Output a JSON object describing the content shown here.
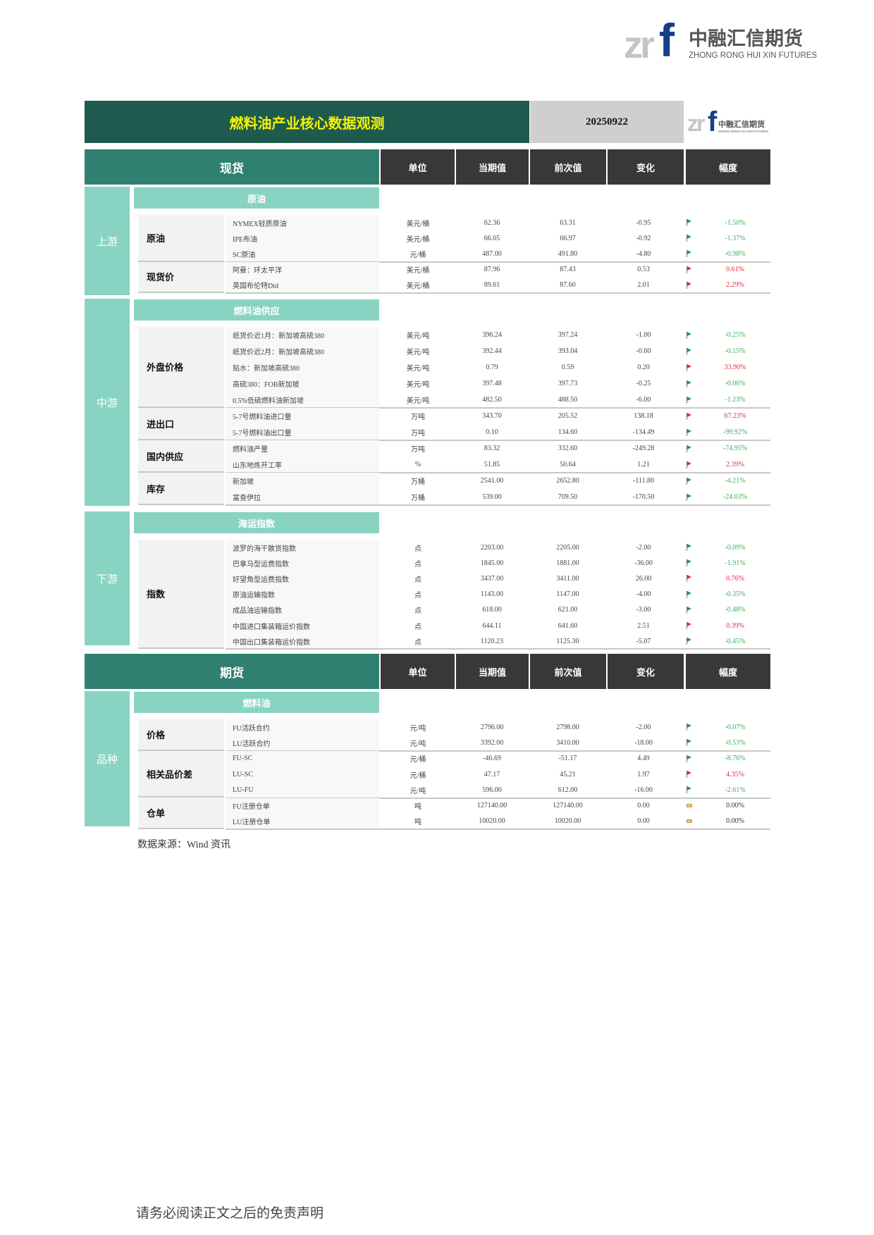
{
  "logo": {
    "brand_cn": "中融汇信期货",
    "brand_en": "ZHONG RONG HUI XIN FUTURES",
    "mark": "zrf"
  },
  "title": "燃料油产业核心数据观测",
  "date": "20250922",
  "columns": [
    "单位",
    "当期值",
    "前次值",
    "变化",
    "幅度"
  ],
  "colors": {
    "up": "#e0303c",
    "down": "#3cb050",
    "flag_up": "#e03030",
    "flag_down": "#2e8b6e",
    "header_dark": "#1f5a4e",
    "header_teal": "#2f8070",
    "section": "#89d3c3"
  },
  "spot": {
    "label": "现货",
    "blocks": [
      {
        "section": "上游",
        "sub": "原油",
        "groups": [
          {
            "label": "原油",
            "rows": [
              {
                "item": "NYMEX轻质原油",
                "unit": "美元/桶",
                "cur": "62.36",
                "prev": "63.31",
                "chg": "-0.95",
                "pct": "-1.50%",
                "dir": "down"
              },
              {
                "item": "IPE布油",
                "unit": "美元/桶",
                "cur": "66.05",
                "prev": "66.97",
                "chg": "-0.92",
                "pct": "-1.37%",
                "dir": "down"
              },
              {
                "item": "SC原油",
                "unit": "元/桶",
                "cur": "487.00",
                "prev": "491.80",
                "chg": "-4.80",
                "pct": "-0.98%",
                "dir": "down"
              }
            ]
          },
          {
            "label": "现货价",
            "rows": [
              {
                "item": "阿曼：环太平洋",
                "unit": "美元/桶",
                "cur": "87.96",
                "prev": "87.43",
                "chg": "0.53",
                "pct": "0.61%",
                "dir": "up"
              },
              {
                "item": "英国布伦特Dtd",
                "unit": "美元/桶",
                "cur": "89.61",
                "prev": "87.60",
                "chg": "2.01",
                "pct": "2.29%",
                "dir": "up"
              }
            ]
          }
        ]
      },
      {
        "section": "中游",
        "sub": "燃料油供应",
        "groups": [
          {
            "label": "外盘价格",
            "rows": [
              {
                "item": "纸货价近1月：新加坡高硫380",
                "unit": "美元/吨",
                "cur": "396.24",
                "prev": "397.24",
                "chg": "-1.00",
                "pct": "-0.25%",
                "dir": "down"
              },
              {
                "item": "纸货价近2月：新加坡高硫380",
                "unit": "美元/吨",
                "cur": "392.44",
                "prev": "393.04",
                "chg": "-0.60",
                "pct": "-0.15%",
                "dir": "down"
              },
              {
                "item": "贴水：新加坡高硫380",
                "unit": "美元/吨",
                "cur": "0.79",
                "prev": "0.59",
                "chg": "0.20",
                "pct": "33.90%",
                "dir": "up"
              },
              {
                "item": "高硫380：FOB新加坡",
                "unit": "美元/吨",
                "cur": "397.48",
                "prev": "397.73",
                "chg": "-0.25",
                "pct": "-0.06%",
                "dir": "down"
              },
              {
                "item": "0.5%低硫燃料油新加坡",
                "unit": "美元/吨",
                "cur": "482.50",
                "prev": "488.50",
                "chg": "-6.00",
                "pct": "-1.23%",
                "dir": "down"
              }
            ]
          },
          {
            "label": "进出口",
            "rows": [
              {
                "item": "5-7号燃料油进口量",
                "unit": "万吨",
                "cur": "343.70",
                "prev": "205.52",
                "chg": "138.18",
                "pct": "67.23%",
                "dir": "up"
              },
              {
                "item": "5-7号燃料油出口量",
                "unit": "万吨",
                "cur": "0.10",
                "prev": "134.60",
                "chg": "-134.49",
                "pct": "-99.92%",
                "dir": "down"
              }
            ]
          },
          {
            "label": "国内供应",
            "rows": [
              {
                "item": "燃料油产量",
                "unit": "万吨",
                "cur": "83.32",
                "prev": "332.60",
                "chg": "-249.28",
                "pct": "-74.95%",
                "dir": "down"
              },
              {
                "item": "山东地炼开工率",
                "unit": "%",
                "cur": "51.85",
                "prev": "50.64",
                "chg": "1.21",
                "pct": "2.39%",
                "dir": "up"
              }
            ]
          },
          {
            "label": "库存",
            "rows": [
              {
                "item": "新加坡",
                "unit": "万桶",
                "cur": "2541.00",
                "prev": "2652.80",
                "chg": "-111.80",
                "pct": "-4.21%",
                "dir": "down"
              },
              {
                "item": "富查伊拉",
                "unit": "万桶",
                "cur": "539.00",
                "prev": "709.50",
                "chg": "-170.50",
                "pct": "-24.03%",
                "dir": "down"
              }
            ]
          }
        ]
      },
      {
        "section": "下游",
        "sub": "海运指数",
        "groups": [
          {
            "label": "指数",
            "rows": [
              {
                "item": "波罗的海干散货指数",
                "unit": "点",
                "cur": "2203.00",
                "prev": "2205.00",
                "chg": "-2.00",
                "pct": "-0.09%",
                "dir": "down"
              },
              {
                "item": "巴拿马型运费指数",
                "unit": "点",
                "cur": "1845.00",
                "prev": "1881.00",
                "chg": "-36.00",
                "pct": "-1.91%",
                "dir": "down"
              },
              {
                "item": "好望角型运费指数",
                "unit": "点",
                "cur": "3437.00",
                "prev": "3411.00",
                "chg": "26.00",
                "pct": "0.76%",
                "dir": "up"
              },
              {
                "item": "原油运输指数",
                "unit": "点",
                "cur": "1143.00",
                "prev": "1147.00",
                "chg": "-4.00",
                "pct": "-0.35%",
                "dir": "down"
              },
              {
                "item": "成品油运输指数",
                "unit": "点",
                "cur": "618.00",
                "prev": "621.00",
                "chg": "-3.00",
                "pct": "-0.48%",
                "dir": "down"
              },
              {
                "item": "中国进口集装箱运价指数",
                "unit": "点",
                "cur": "644.11",
                "prev": "641.60",
                "chg": "2.51",
                "pct": "0.39%",
                "dir": "up"
              },
              {
                "item": "中国出口集装箱运价指数",
                "unit": "点",
                "cur": "1120.23",
                "prev": "1125.30",
                "chg": "-5.07",
                "pct": "-0.45%",
                "dir": "down"
              }
            ]
          }
        ]
      }
    ]
  },
  "futures": {
    "label": "期货",
    "blocks": [
      {
        "section": "品种",
        "sub": "燃料油",
        "groups": [
          {
            "label": "价格",
            "rows": [
              {
                "item": "FU活跃合约",
                "unit": "元/吨",
                "cur": "2796.00",
                "prev": "2798.00",
                "chg": "-2.00",
                "pct": "-0.07%",
                "dir": "down"
              },
              {
                "item": "LU活跃合约",
                "unit": "元/吨",
                "cur": "3392.00",
                "prev": "3410.00",
                "chg": "-18.00",
                "pct": "-0.53%",
                "dir": "down"
              }
            ]
          },
          {
            "label": "相关品价差",
            "rows": [
              {
                "item": "FU-SC",
                "unit": "元/桶",
                "cur": "-46.69",
                "prev": "-51.17",
                "chg": "4.49",
                "pct": "-8.76%",
                "dir": "down"
              },
              {
                "item": "LU-SC",
                "unit": "元/桶",
                "cur": "47.17",
                "prev": "45.21",
                "chg": "1.97",
                "pct": "4.35%",
                "dir": "up"
              },
              {
                "item": "LU-FU",
                "unit": "元/吨",
                "cur": "596.00",
                "prev": "612.00",
                "chg": "-16.00",
                "pct": "-2.61%",
                "dir": "down"
              }
            ]
          },
          {
            "label": "仓单",
            "rows": [
              {
                "item": "FU注册仓单",
                "unit": "吨",
                "cur": "127140.00",
                "prev": "127140.00",
                "chg": "0.00",
                "pct": "0.00%",
                "dir": "flat"
              },
              {
                "item": "LU注册仓单",
                "unit": "吨",
                "cur": "10020.00",
                "prev": "10020.00",
                "chg": "0.00",
                "pct": "0.00%",
                "dir": "flat"
              }
            ]
          }
        ]
      }
    ]
  },
  "source": "数据来源：Wind 资讯",
  "footer": "请务必阅读正文之后的免责声明"
}
